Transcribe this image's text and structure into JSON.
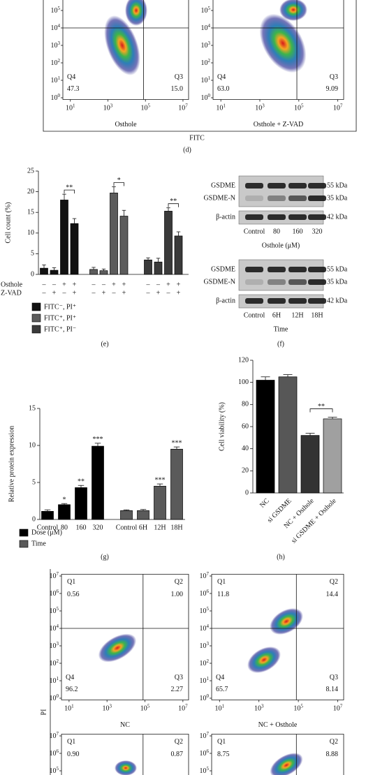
{
  "figure": {
    "panel_d": "(d)",
    "x_title": "FITC",
    "y_title": "PI"
  },
  "chart_data": [
    {
      "type": "flow",
      "tick_base": "10",
      "xticks": [
        1,
        3,
        5,
        7
      ],
      "yticks": [
        0,
        1,
        2,
        3,
        4,
        5
      ],
      "xlim": [
        0.6,
        7.3
      ],
      "ylim": [
        -0.1,
        5.6
      ],
      "gate": [
        4.9,
        4
      ],
      "quadrants": [
        {
          "name": "Q4",
          "value": 47.3,
          "value_label": "47.3"
        },
        {
          "name": "Q3",
          "value": 15.0,
          "value_label": "15.0"
        }
      ],
      "xlabel": "Osthole"
    },
    {
      "type": "flow",
      "tick_base": "10",
      "xticks": [
        1,
        3,
        5,
        7
      ],
      "yticks": [
        0,
        1,
        2,
        3,
        4,
        5
      ],
      "xlim": [
        0.6,
        7.3
      ],
      "ylim": [
        -0.1,
        5.6
      ],
      "gate": [
        4.9,
        4
      ],
      "quadrants": [
        {
          "name": "Q4",
          "value": 63.0,
          "value_label": "63.0"
        },
        {
          "name": "Q3",
          "value": 9.09,
          "value_label": "9.09"
        }
      ],
      "xlabel": "Osthole + Z-VAD"
    },
    {
      "type": "grouped_bar",
      "panel": "(e)",
      "ylabel": "Cell count (%)",
      "ylim": [
        0,
        25
      ],
      "yticks": [
        0,
        5,
        10,
        15,
        20,
        25
      ],
      "conditions": [
        {
          "name": "Osthole",
          "signs": [
            "–",
            "–",
            "+",
            "+",
            "–",
            "–",
            "+",
            "+",
            "–",
            "–",
            "+",
            "+"
          ]
        },
        {
          "name": "Z-VAD",
          "signs": [
            "–",
            "+",
            "–",
            "+",
            "–",
            "+",
            "–",
            "+",
            "–",
            "+",
            "–",
            "+"
          ]
        }
      ],
      "series": [
        {
          "name": "FITC⁻, PI⁺",
          "color": "#111111",
          "values": [
            1.5,
            1.0,
            18.0,
            12.3
          ],
          "errors": [
            0.8,
            0.6,
            1.4,
            1.2
          ],
          "significance": "**"
        },
        {
          "name": "FITC⁺, PI⁺",
          "color": "#5c5c5c",
          "values": [
            1.2,
            0.9,
            19.7,
            14.1
          ],
          "errors": [
            0.5,
            0.4,
            1.5,
            1.4
          ],
          "significance": "*"
        },
        {
          "name": "FITC⁺, PI⁻",
          "color": "#3a3a3a",
          "values": [
            3.5,
            3.0,
            15.3,
            9.3
          ],
          "errors": [
            0.5,
            0.9,
            0.8,
            1.0
          ],
          "significance": "**"
        }
      ]
    },
    {
      "type": "blot",
      "panel": "(f)",
      "blots": [
        {
          "rows": [
            "GSDME",
            "GSDME-N",
            "β-actin"
          ],
          "sizes": [
            "55 kDa",
            "35 kDa",
            "42 kDa"
          ],
          "lanes": [
            "Control",
            "80",
            "160",
            "320"
          ],
          "xlabel": "Osthole (μM)"
        },
        {
          "rows": [
            "GSDME",
            "GSDME-N",
            "β-actin"
          ],
          "sizes": [
            "55 kDa",
            "35 kDa",
            "42 kDa"
          ],
          "lanes": [
            "Control",
            "6H",
            "12H",
            "18H"
          ],
          "xlabel": "Time"
        }
      ]
    },
    {
      "type": "bar_groups",
      "panel": "(g)",
      "ylabel": "Relative protein expression",
      "ylim": [
        0,
        15
      ],
      "yticks": [
        0,
        5,
        10,
        15
      ],
      "series": [
        {
          "name": "Dose (μM)",
          "color": "#000000",
          "categories": [
            "Control",
            "80",
            "160",
            "320"
          ],
          "values": [
            1.1,
            2.0,
            4.3,
            9.9
          ],
          "errors": [
            0.2,
            0.15,
            0.3,
            0.4
          ],
          "stars": [
            null,
            "*",
            "**",
            "***"
          ]
        },
        {
          "name": "Time",
          "color": "#5a5a5a",
          "categories": [
            "Control",
            "6H",
            "12H",
            "18H"
          ],
          "values": [
            1.2,
            1.2,
            4.5,
            9.5
          ],
          "errors": [
            0.1,
            0.15,
            0.3,
            0.3
          ],
          "stars": [
            null,
            null,
            "***",
            "***"
          ]
        }
      ]
    },
    {
      "type": "bar",
      "panel": "(h)",
      "ylabel": "Cell viability (%)",
      "ylim": [
        0,
        120
      ],
      "yticks": [
        0,
        20,
        40,
        60,
        80,
        100,
        120
      ],
      "categories": [
        "NC",
        "si GSDME",
        "NC + Osthole",
        "si GSDME + Osthole"
      ],
      "values": [
        102,
        105,
        52,
        67
      ],
      "errors": [
        3,
        2,
        2,
        1.5
      ],
      "colors": [
        "#000000",
        "#575757",
        "#333333",
        "#a0a0a0"
      ],
      "significance": "**"
    },
    {
      "type": "flow",
      "tick_base": "10",
      "xticks": [
        1,
        3,
        5,
        7
      ],
      "yticks": [
        0,
        1,
        2,
        3,
        4,
        5,
        6,
        7
      ],
      "xlim": [
        0.6,
        7.3
      ],
      "ylim": [
        -0.1,
        7.1
      ],
      "gate": [
        4.9,
        4
      ],
      "quadrants": [
        {
          "name": "Q1",
          "value": 0.56,
          "value_label": "0.56"
        },
        {
          "name": "Q2",
          "value": 1.0,
          "value_label": "1.00"
        },
        {
          "name": "Q4",
          "value": 96.2,
          "value_label": "96.2"
        },
        {
          "name": "Q3",
          "value": 2.27,
          "value_label": "2.27"
        }
      ],
      "xlabel": "NC"
    },
    {
      "type": "flow",
      "tick_base": "10",
      "xticks": [
        1,
        3,
        5,
        7
      ],
      "yticks": [
        0,
        1,
        2,
        3,
        4,
        5,
        6,
        7
      ],
      "xlim": [
        0.6,
        7.3
      ],
      "ylim": [
        -0.1,
        7.1
      ],
      "gate": [
        4.9,
        4
      ],
      "quadrants": [
        {
          "name": "Q1",
          "value": 11.8,
          "value_label": "11.8"
        },
        {
          "name": "Q2",
          "value": 14.4,
          "value_label": "14.4"
        },
        {
          "name": "Q4",
          "value": 65.7,
          "value_label": "65.7"
        },
        {
          "name": "Q3",
          "value": 8.14,
          "value_label": "8.14"
        }
      ],
      "xlabel": "NC + Osthole"
    },
    {
      "type": "flow",
      "tick_base": "10",
      "xticks": [],
      "yticks": [
        5,
        6,
        7
      ],
      "xlim": [
        0.6,
        7.3
      ],
      "ylim": [
        4.6,
        7.1
      ],
      "gate": [
        4.9,
        4
      ],
      "quadrants": [
        {
          "name": "Q1",
          "value": 0.9,
          "value_label": "0.90"
        },
        {
          "name": "Q2",
          "value": 0.87,
          "value_label": "0.87"
        }
      ]
    },
    {
      "type": "flow",
      "tick_base": "10",
      "xticks": [],
      "yticks": [
        5,
        6,
        7
      ],
      "xlim": [
        0.6,
        7.3
      ],
      "ylim": [
        4.6,
        7.1
      ],
      "gate": [
        4.9,
        4
      ],
      "quadrants": [
        {
          "name": "Q1",
          "value": 8.75,
          "value_label": "8.75"
        },
        {
          "name": "Q2",
          "value": 8.88,
          "value_label": "8.88"
        }
      ]
    }
  ]
}
